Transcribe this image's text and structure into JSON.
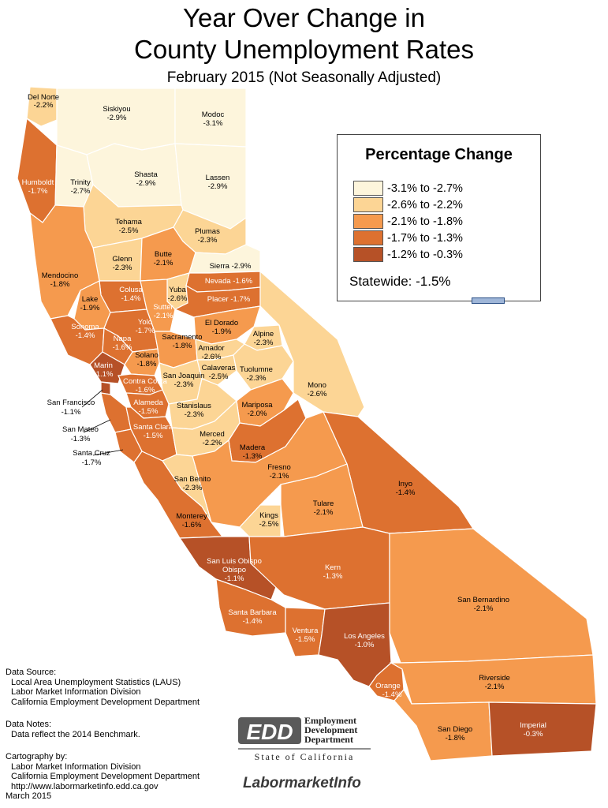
{
  "title": {
    "line1": "Year Over Change in",
    "line2": "County Unemployment Rates",
    "subtitle": "February 2015 (Not Seasonally Adjusted)"
  },
  "colors": {
    "c1": "#fdf5dc",
    "c2": "#fcd595",
    "c3": "#f59a4e",
    "c4": "#dd7130",
    "c5": "#b65127"
  },
  "legend": {
    "title": "Percentage Change",
    "items": [
      {
        "label": "-3.1% to -2.7%",
        "color": "#fdf5dc"
      },
      {
        "label": "-2.6% to -2.2%",
        "color": "#fcd595"
      },
      {
        "label": "-2.1% to -1.8%",
        "color": "#f59a4e"
      },
      {
        "label": "-1.7% to -1.3%",
        "color": "#dd7130"
      },
      {
        "label": "-1.2% to -0.3%",
        "color": "#b65127"
      }
    ],
    "statewide": "Statewide:  -1.5%"
  },
  "counties": [
    {
      "name": "Del Norte",
      "value": "-2.2%"
    },
    {
      "name": "Siskiyou",
      "value": "-2.9%"
    },
    {
      "name": "Modoc",
      "value": "-3.1%"
    },
    {
      "name": "Humboldt",
      "value": "-1.7%"
    },
    {
      "name": "Trinity",
      "value": "-2.7%"
    },
    {
      "name": "Shasta",
      "value": "-2.9%"
    },
    {
      "name": "Lassen",
      "value": "-2.9%"
    },
    {
      "name": "Tehama",
      "value": "-2.5%"
    },
    {
      "name": "Plumas",
      "value": "-2.3%"
    },
    {
      "name": "Glenn",
      "value": "-2.3%"
    },
    {
      "name": "Butte",
      "value": "-2.1%"
    },
    {
      "name": "Sierra",
      "value": "-2.9%"
    },
    {
      "name": "Mendocino",
      "value": "-1.8%"
    },
    {
      "name": "Nevada",
      "value": "-1.6%"
    },
    {
      "name": "Colusa",
      "value": "-1.4%"
    },
    {
      "name": "Yuba",
      "value": "-2.6%"
    },
    {
      "name": "Lake",
      "value": "-1.9%"
    },
    {
      "name": "Sutter",
      "value": "-2.1%"
    },
    {
      "name": "Placer",
      "value": "-1.7%"
    },
    {
      "name": "Yolo",
      "value": "-1.7%"
    },
    {
      "name": "El Dorado",
      "value": "-1.9%"
    },
    {
      "name": "Sonoma",
      "value": "-1.4%"
    },
    {
      "name": "Alpine",
      "value": "-2.3%"
    },
    {
      "name": "Napa",
      "value": "-1.6%"
    },
    {
      "name": "Sacramento",
      "value": "-1.8%"
    },
    {
      "name": "Amador",
      "value": "-2.6%"
    },
    {
      "name": "Solano",
      "value": "-1.8%"
    },
    {
      "name": "Marin",
      "value": "-1.1%"
    },
    {
      "name": "Calaveras",
      "value": "-2.5%"
    },
    {
      "name": "Tuolumne",
      "value": "-2.3%"
    },
    {
      "name": "San Joaquin",
      "value": "-2.3%"
    },
    {
      "name": "Mono",
      "value": "-2.6%"
    },
    {
      "name": "Contra Costa",
      "value": "-1.6%"
    },
    {
      "name": "San Francisco",
      "value": "-1.1%"
    },
    {
      "name": "Alameda",
      "value": "-1.5%"
    },
    {
      "name": "Stanislaus",
      "value": "-2.3%"
    },
    {
      "name": "Mariposa",
      "value": "-2.0%"
    },
    {
      "name": "San Mateo",
      "value": "-1.3%"
    },
    {
      "name": "Santa Clara",
      "value": "-1.5%"
    },
    {
      "name": "Merced",
      "value": "-2.2%"
    },
    {
      "name": "Madera",
      "value": "-1.3%"
    },
    {
      "name": "Santa Cruz",
      "value": "-1.7%"
    },
    {
      "name": "Fresno",
      "value": "-2.1%"
    },
    {
      "name": "Inyo",
      "value": "-1.4%"
    },
    {
      "name": "San Benito",
      "value": "-2.3%"
    },
    {
      "name": "Tulare",
      "value": "-2.1%"
    },
    {
      "name": "Monterey",
      "value": "-1.6%"
    },
    {
      "name": "Kings",
      "value": "-2.5%"
    },
    {
      "name": "San Luis Obispo",
      "value": "-1.1%"
    },
    {
      "name": "Kern",
      "value": "-1.3%"
    },
    {
      "name": "San Bernardino",
      "value": "-2.1%"
    },
    {
      "name": "Santa Barbara",
      "value": "-1.4%"
    },
    {
      "name": "Ventura",
      "value": "-1.5%"
    },
    {
      "name": "Los Angeles",
      "value": "-1.0%"
    },
    {
      "name": "Orange",
      "value": "-1.4%"
    },
    {
      "name": "Riverside",
      "value": "-2.1%"
    },
    {
      "name": "San Diego",
      "value": "-1.8%"
    },
    {
      "name": "Imperial",
      "value": "-0.3%"
    }
  ],
  "notes": {
    "source_heading": "Data Source:",
    "source_lines": [
      "Local Area Unemployment Statistics (LAUS)",
      "Labor Market Information Division",
      "California Employment Development Department"
    ],
    "data_notes_heading": "Data Notes:",
    "data_notes_lines": [
      "Data reflect the 2014 Benchmark."
    ],
    "cartography_heading": "Cartography by:",
    "cartography_lines": [
      "Labor Market Information Division",
      "California Employment Development Department",
      "http://www.labormarketinfo.edd.ca.gov"
    ],
    "date": "March 2015"
  },
  "logos": {
    "edd_mark": "EDD",
    "edd_name": [
      "Employment",
      "Development",
      "Department"
    ],
    "state": "State of California",
    "lmi": "LabormarketInfo"
  }
}
